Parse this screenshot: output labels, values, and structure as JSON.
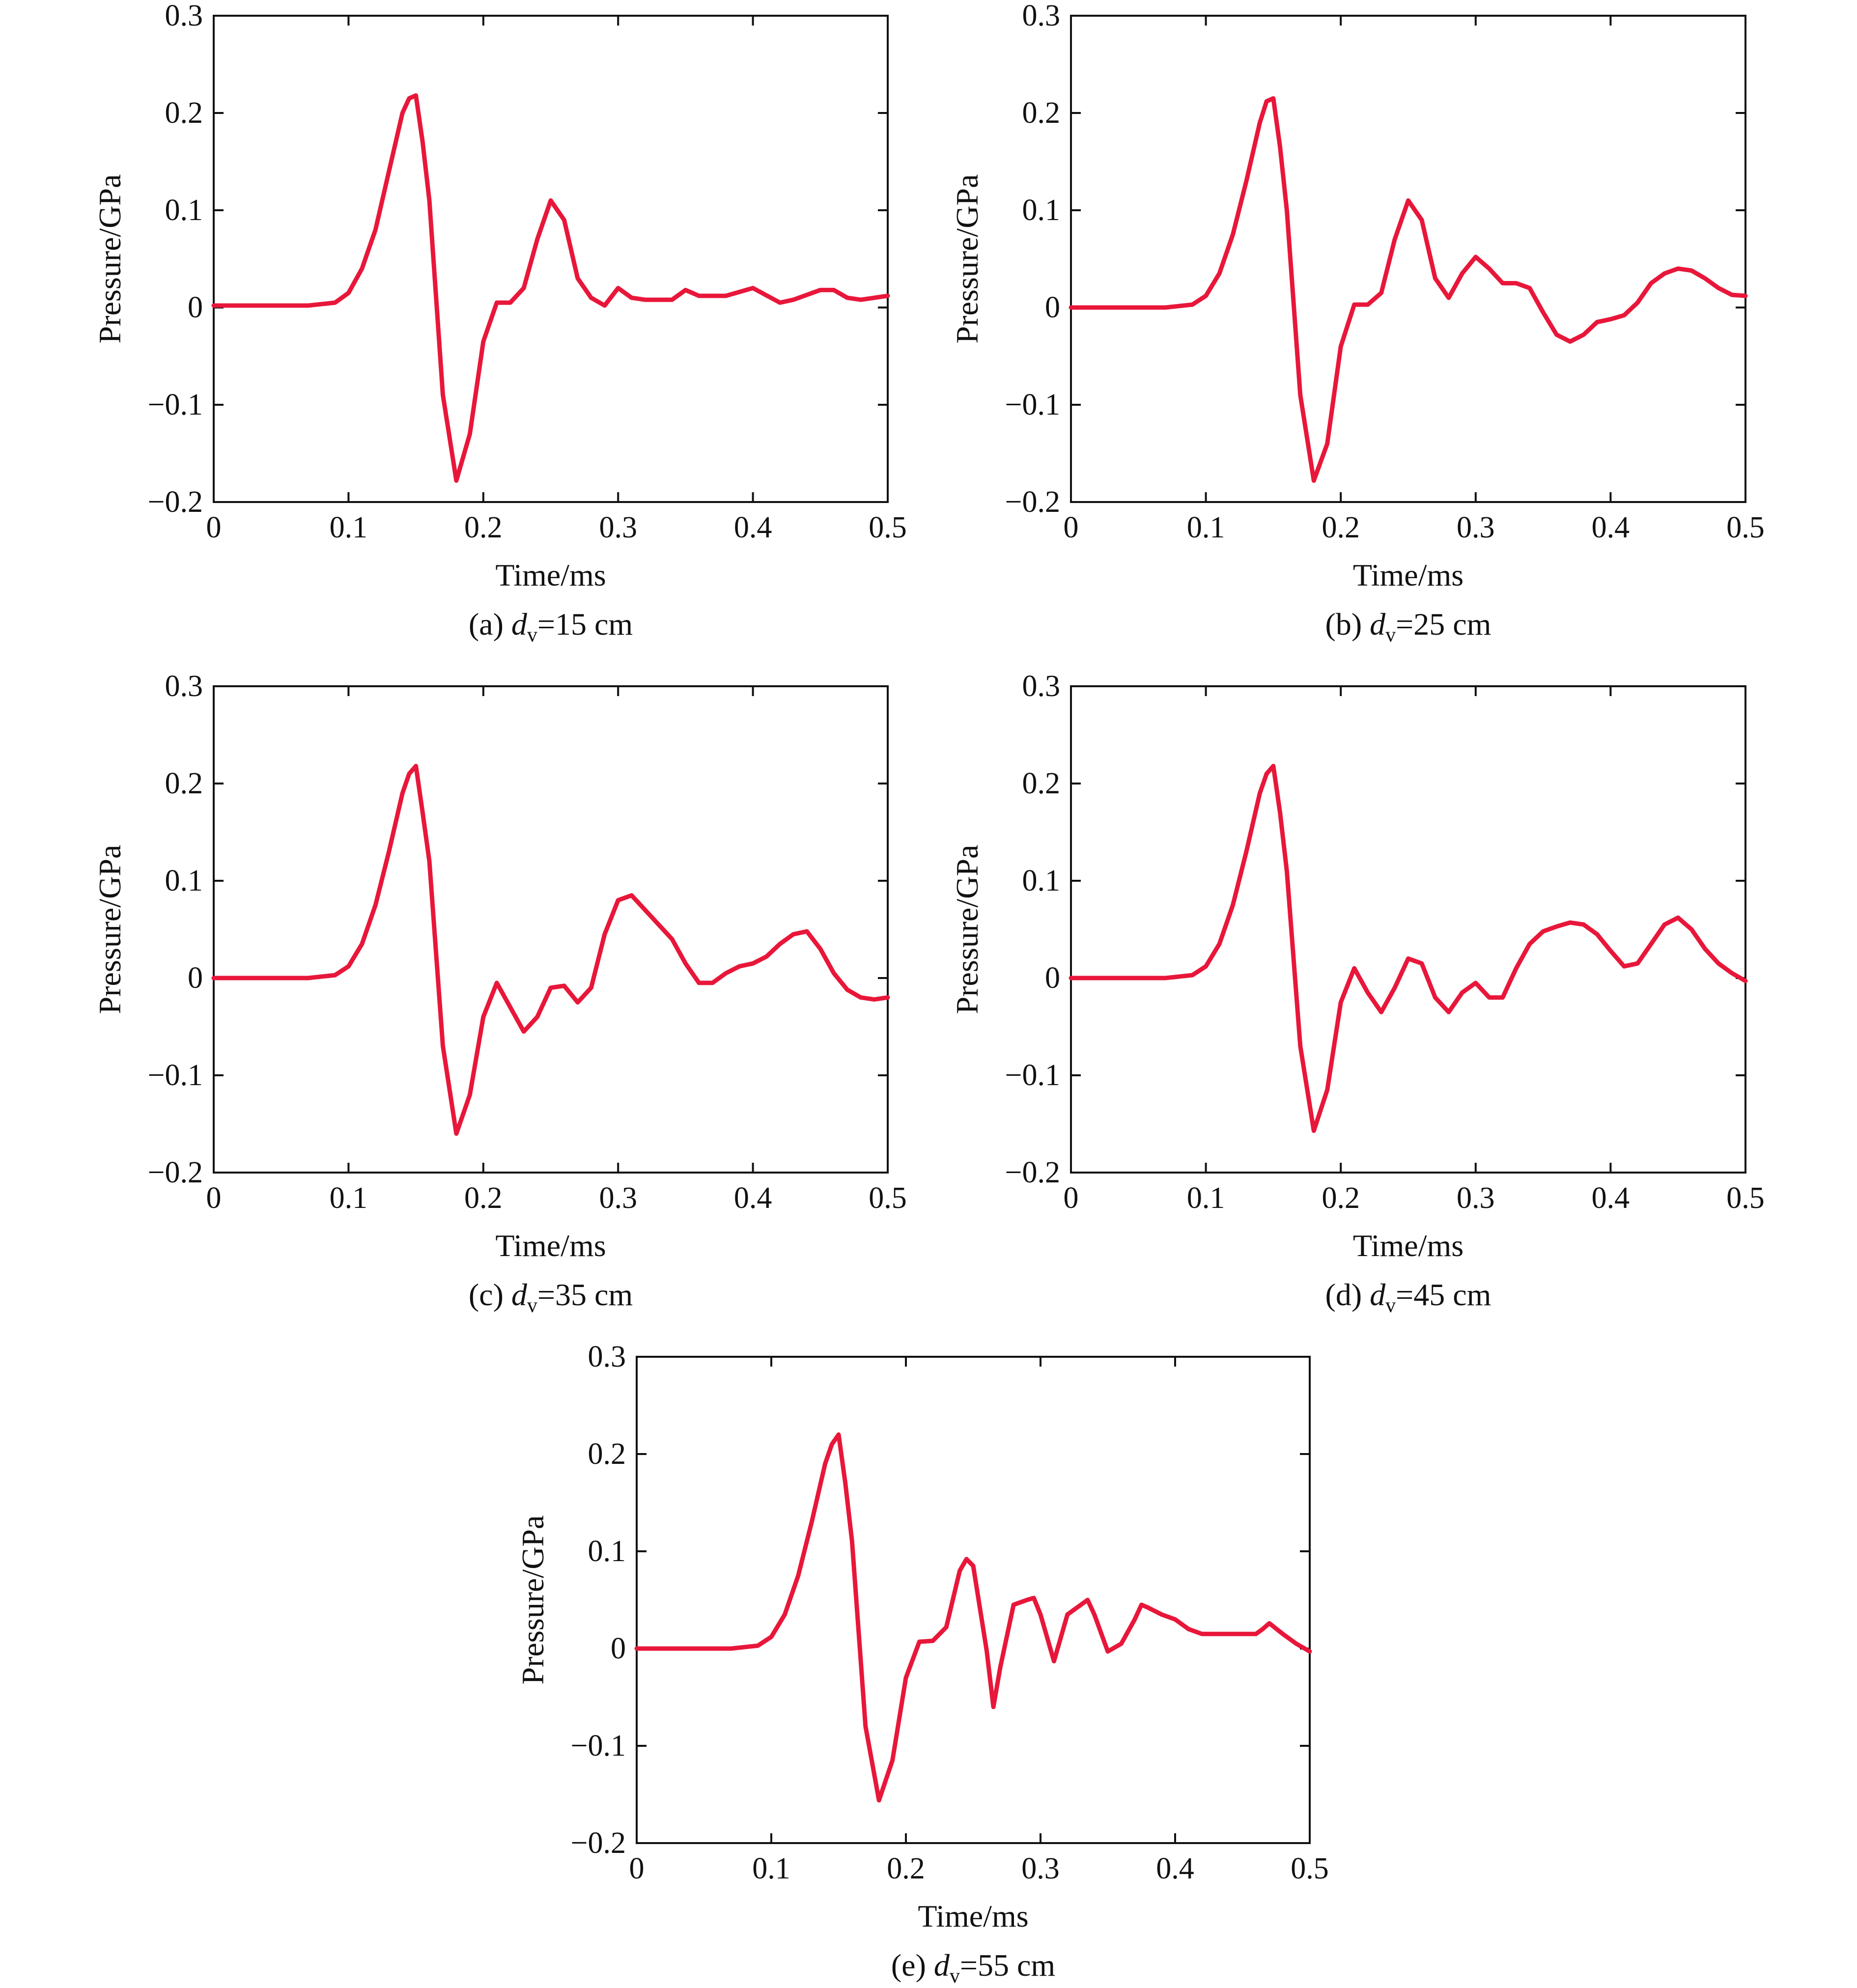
{
  "figure": {
    "line_color": "#e8173a",
    "panels": [
      {
        "caption": {
          "prefix": "(a) ",
          "var": "d",
          "sub": "v",
          "suffix": "=15 cm"
        },
        "chart_data": {
          "type": "line",
          "title": "",
          "xlabel": "Time/ms",
          "ylabel": "Pressure/GPa",
          "xlim": [
            0,
            0.5
          ],
          "ylim": [
            -0.2,
            0.3
          ],
          "xticks": [
            0,
            0.1,
            0.2,
            0.3,
            0.4,
            0.5
          ],
          "xtick_labels": [
            "0",
            "0.1",
            "0.2",
            "0.3",
            "0.4",
            "0.5"
          ],
          "yticks": [
            -0.2,
            -0.1,
            0,
            0.1,
            0.2,
            0.3
          ],
          "ytick_labels": [
            "−0.2",
            "−0.1",
            "0",
            "0.1",
            "0.2",
            "0.3"
          ],
          "grid": false,
          "series": [
            {
              "x": [
                0,
                0.07,
                0.09,
                0.1,
                0.11,
                0.12,
                0.13,
                0.14,
                0.145,
                0.15,
                0.155,
                0.16,
                0.17,
                0.18,
                0.19,
                0.2,
                0.21,
                0.22,
                0.23,
                0.24,
                0.25,
                0.26,
                0.27,
                0.28,
                0.29,
                0.3,
                0.31,
                0.32,
                0.34,
                0.35,
                0.36,
                0.38,
                0.4,
                0.42,
                0.43,
                0.45,
                0.46,
                0.47,
                0.48,
                0.5
              ],
              "y": [
                0.002,
                0.002,
                0.005,
                0.015,
                0.04,
                0.08,
                0.14,
                0.2,
                0.215,
                0.218,
                0.17,
                0.11,
                -0.09,
                -0.178,
                -0.13,
                -0.035,
                0.005,
                0.005,
                0.02,
                0.07,
                0.11,
                0.09,
                0.03,
                0.01,
                0.002,
                0.02,
                0.01,
                0.008,
                0.008,
                0.018,
                0.012,
                0.012,
                0.02,
                0.005,
                0.008,
                0.018,
                0.018,
                0.01,
                0.008,
                0.012
              ]
            }
          ]
        }
      },
      {
        "caption": {
          "prefix": "(b) ",
          "var": "d",
          "sub": "v",
          "suffix": "=25 cm"
        },
        "chart_data": {
          "type": "line",
          "title": "",
          "xlabel": "Time/ms",
          "ylabel": "Pressure/GPa",
          "xlim": [
            0,
            0.5
          ],
          "ylim": [
            -0.2,
            0.3
          ],
          "xticks": [
            0,
            0.1,
            0.2,
            0.3,
            0.4,
            0.5
          ],
          "xtick_labels": [
            "0",
            "0.1",
            "0.2",
            "0.3",
            "0.4",
            "0.5"
          ],
          "yticks": [
            -0.2,
            -0.1,
            0,
            0.1,
            0.2,
            0.3
          ],
          "ytick_labels": [
            "−0.2",
            "−0.1",
            "0",
            "0.1",
            "0.2",
            "0.3"
          ],
          "grid": false,
          "series": [
            {
              "x": [
                0,
                0.07,
                0.09,
                0.1,
                0.11,
                0.12,
                0.13,
                0.14,
                0.145,
                0.15,
                0.155,
                0.16,
                0.17,
                0.18,
                0.19,
                0.2,
                0.21,
                0.22,
                0.23,
                0.24,
                0.25,
                0.26,
                0.27,
                0.28,
                0.29,
                0.3,
                0.31,
                0.32,
                0.33,
                0.34,
                0.35,
                0.36,
                0.37,
                0.38,
                0.39,
                0.4,
                0.41,
                0.42,
                0.43,
                0.44,
                0.45,
                0.46,
                0.47,
                0.48,
                0.49,
                0.5
              ],
              "y": [
                0,
                0,
                0.003,
                0.012,
                0.035,
                0.075,
                0.13,
                0.19,
                0.212,
                0.215,
                0.165,
                0.1,
                -0.09,
                -0.178,
                -0.14,
                -0.04,
                0.003,
                0.003,
                0.015,
                0.07,
                0.11,
                0.09,
                0.03,
                0.01,
                0.035,
                0.052,
                0.04,
                0.025,
                0.025,
                0.02,
                -0.005,
                -0.028,
                -0.035,
                -0.028,
                -0.015,
                -0.012,
                -0.008,
                0.005,
                0.025,
                0.035,
                0.04,
                0.038,
                0.03,
                0.02,
                0.013,
                0.012
              ]
            }
          ]
        }
      },
      {
        "caption": {
          "prefix": "(c) ",
          "var": "d",
          "sub": "v",
          "suffix": "=35 cm"
        },
        "chart_data": {
          "type": "line",
          "title": "",
          "xlabel": "Time/ms",
          "ylabel": "Pressure/GPa",
          "xlim": [
            0,
            0.5
          ],
          "ylim": [
            -0.2,
            0.3
          ],
          "xticks": [
            0,
            0.1,
            0.2,
            0.3,
            0.4,
            0.5
          ],
          "xtick_labels": [
            "0",
            "0.1",
            "0.2",
            "0.3",
            "0.4",
            "0.5"
          ],
          "yticks": [
            -0.2,
            -0.1,
            0,
            0.1,
            0.2,
            0.3
          ],
          "ytick_labels": [
            "−0.2",
            "−0.1",
            "0",
            "0.1",
            "0.2",
            "0.3"
          ],
          "grid": false,
          "series": [
            {
              "x": [
                0,
                0.07,
                0.09,
                0.1,
                0.11,
                0.12,
                0.13,
                0.14,
                0.145,
                0.15,
                0.155,
                0.16,
                0.17,
                0.18,
                0.19,
                0.2,
                0.21,
                0.22,
                0.23,
                0.24,
                0.25,
                0.26,
                0.27,
                0.28,
                0.29,
                0.3,
                0.31,
                0.32,
                0.33,
                0.34,
                0.35,
                0.36,
                0.37,
                0.38,
                0.39,
                0.4,
                0.41,
                0.42,
                0.43,
                0.44,
                0.45,
                0.46,
                0.47,
                0.48,
                0.49,
                0.5
              ],
              "y": [
                0,
                0,
                0.003,
                0.012,
                0.035,
                0.075,
                0.13,
                0.19,
                0.21,
                0.218,
                0.17,
                0.12,
                -0.07,
                -0.16,
                -0.12,
                -0.04,
                -0.005,
                -0.03,
                -0.055,
                -0.04,
                -0.01,
                -0.008,
                -0.025,
                -0.01,
                0.045,
                0.08,
                0.085,
                0.07,
                0.055,
                0.04,
                0.015,
                -0.005,
                -0.005,
                0.005,
                0.012,
                0.015,
                0.022,
                0.035,
                0.045,
                0.048,
                0.03,
                0.005,
                -0.012,
                -0.02,
                -0.022,
                -0.02
              ]
            }
          ]
        }
      },
      {
        "caption": {
          "prefix": "(d) ",
          "var": "d",
          "sub": "v",
          "suffix": "=45 cm"
        },
        "chart_data": {
          "type": "line",
          "title": "",
          "xlabel": "Time/ms",
          "ylabel": "Pressure/GPa",
          "xlim": [
            0,
            0.5
          ],
          "ylim": [
            -0.2,
            0.3
          ],
          "xticks": [
            0,
            0.1,
            0.2,
            0.3,
            0.4,
            0.5
          ],
          "xtick_labels": [
            "0",
            "0.1",
            "0.2",
            "0.3",
            "0.4",
            "0.5"
          ],
          "yticks": [
            -0.2,
            -0.1,
            0,
            0.1,
            0.2,
            0.3
          ],
          "ytick_labels": [
            "−0.2",
            "−0.1",
            "0",
            "0.1",
            "0.2",
            "0.3"
          ],
          "grid": false,
          "series": [
            {
              "x": [
                0,
                0.07,
                0.09,
                0.1,
                0.11,
                0.12,
                0.13,
                0.14,
                0.145,
                0.15,
                0.155,
                0.16,
                0.17,
                0.18,
                0.19,
                0.2,
                0.21,
                0.22,
                0.23,
                0.24,
                0.25,
                0.26,
                0.27,
                0.28,
                0.29,
                0.3,
                0.31,
                0.32,
                0.33,
                0.34,
                0.35,
                0.36,
                0.37,
                0.38,
                0.39,
                0.4,
                0.41,
                0.42,
                0.43,
                0.44,
                0.45,
                0.46,
                0.47,
                0.48,
                0.49,
                0.5
              ],
              "y": [
                0,
                0,
                0.003,
                0.012,
                0.035,
                0.075,
                0.13,
                0.19,
                0.21,
                0.218,
                0.17,
                0.11,
                -0.07,
                -0.157,
                -0.115,
                -0.025,
                0.01,
                -0.015,
                -0.035,
                -0.01,
                0.02,
                0.015,
                -0.02,
                -0.035,
                -0.015,
                -0.005,
                -0.02,
                -0.02,
                0.01,
                0.035,
                0.048,
                0.053,
                0.057,
                0.055,
                0.045,
                0.028,
                0.012,
                0.015,
                0.035,
                0.055,
                0.062,
                0.05,
                0.03,
                0.015,
                0.005,
                -0.003
              ]
            }
          ]
        }
      },
      {
        "caption": {
          "prefix": "(e) ",
          "var": "d",
          "sub": "v",
          "suffix": "=55 cm"
        },
        "chart_data": {
          "type": "line",
          "title": "",
          "xlabel": "Time/ms",
          "ylabel": "Pressure/GPa",
          "xlim": [
            0,
            0.5
          ],
          "ylim": [
            -0.2,
            0.3
          ],
          "xticks": [
            0,
            0.1,
            0.2,
            0.3,
            0.4,
            0.5
          ],
          "xtick_labels": [
            "0",
            "0.1",
            "0.2",
            "0.3",
            "0.4",
            "0.5"
          ],
          "yticks": [
            -0.2,
            -0.1,
            0,
            0.1,
            0.2,
            0.3
          ],
          "ytick_labels": [
            "−0.2",
            "−0.1",
            "0",
            "0.1",
            "0.2",
            "0.3"
          ],
          "grid": false,
          "series": [
            {
              "x": [
                0,
                0.07,
                0.09,
                0.1,
                0.11,
                0.12,
                0.13,
                0.14,
                0.145,
                0.15,
                0.155,
                0.16,
                0.17,
                0.18,
                0.19,
                0.2,
                0.21,
                0.22,
                0.23,
                0.24,
                0.245,
                0.25,
                0.26,
                0.265,
                0.27,
                0.28,
                0.29,
                0.295,
                0.3,
                0.31,
                0.32,
                0.33,
                0.335,
                0.34,
                0.35,
                0.36,
                0.37,
                0.375,
                0.38,
                0.39,
                0.4,
                0.41,
                0.42,
                0.43,
                0.44,
                0.45,
                0.46,
                0.465,
                0.47,
                0.48,
                0.49,
                0.5
              ],
              "y": [
                0,
                0,
                0.003,
                0.012,
                0.035,
                0.075,
                0.13,
                0.19,
                0.21,
                0.22,
                0.17,
                0.11,
                -0.08,
                -0.156,
                -0.115,
                -0.03,
                0.007,
                0.008,
                0.022,
                0.08,
                0.092,
                0.085,
                -0.002,
                -0.06,
                -0.02,
                0.045,
                0.05,
                0.052,
                0.035,
                -0.013,
                0.035,
                0.045,
                0.05,
                0.035,
                -0.003,
                0.005,
                0.03,
                0.045,
                0.042,
                0.035,
                0.03,
                0.02,
                0.015,
                0.015,
                0.015,
                0.015,
                0.015,
                0.02,
                0.026,
                0.015,
                0.005,
                -0.003
              ]
            }
          ]
        }
      }
    ]
  }
}
